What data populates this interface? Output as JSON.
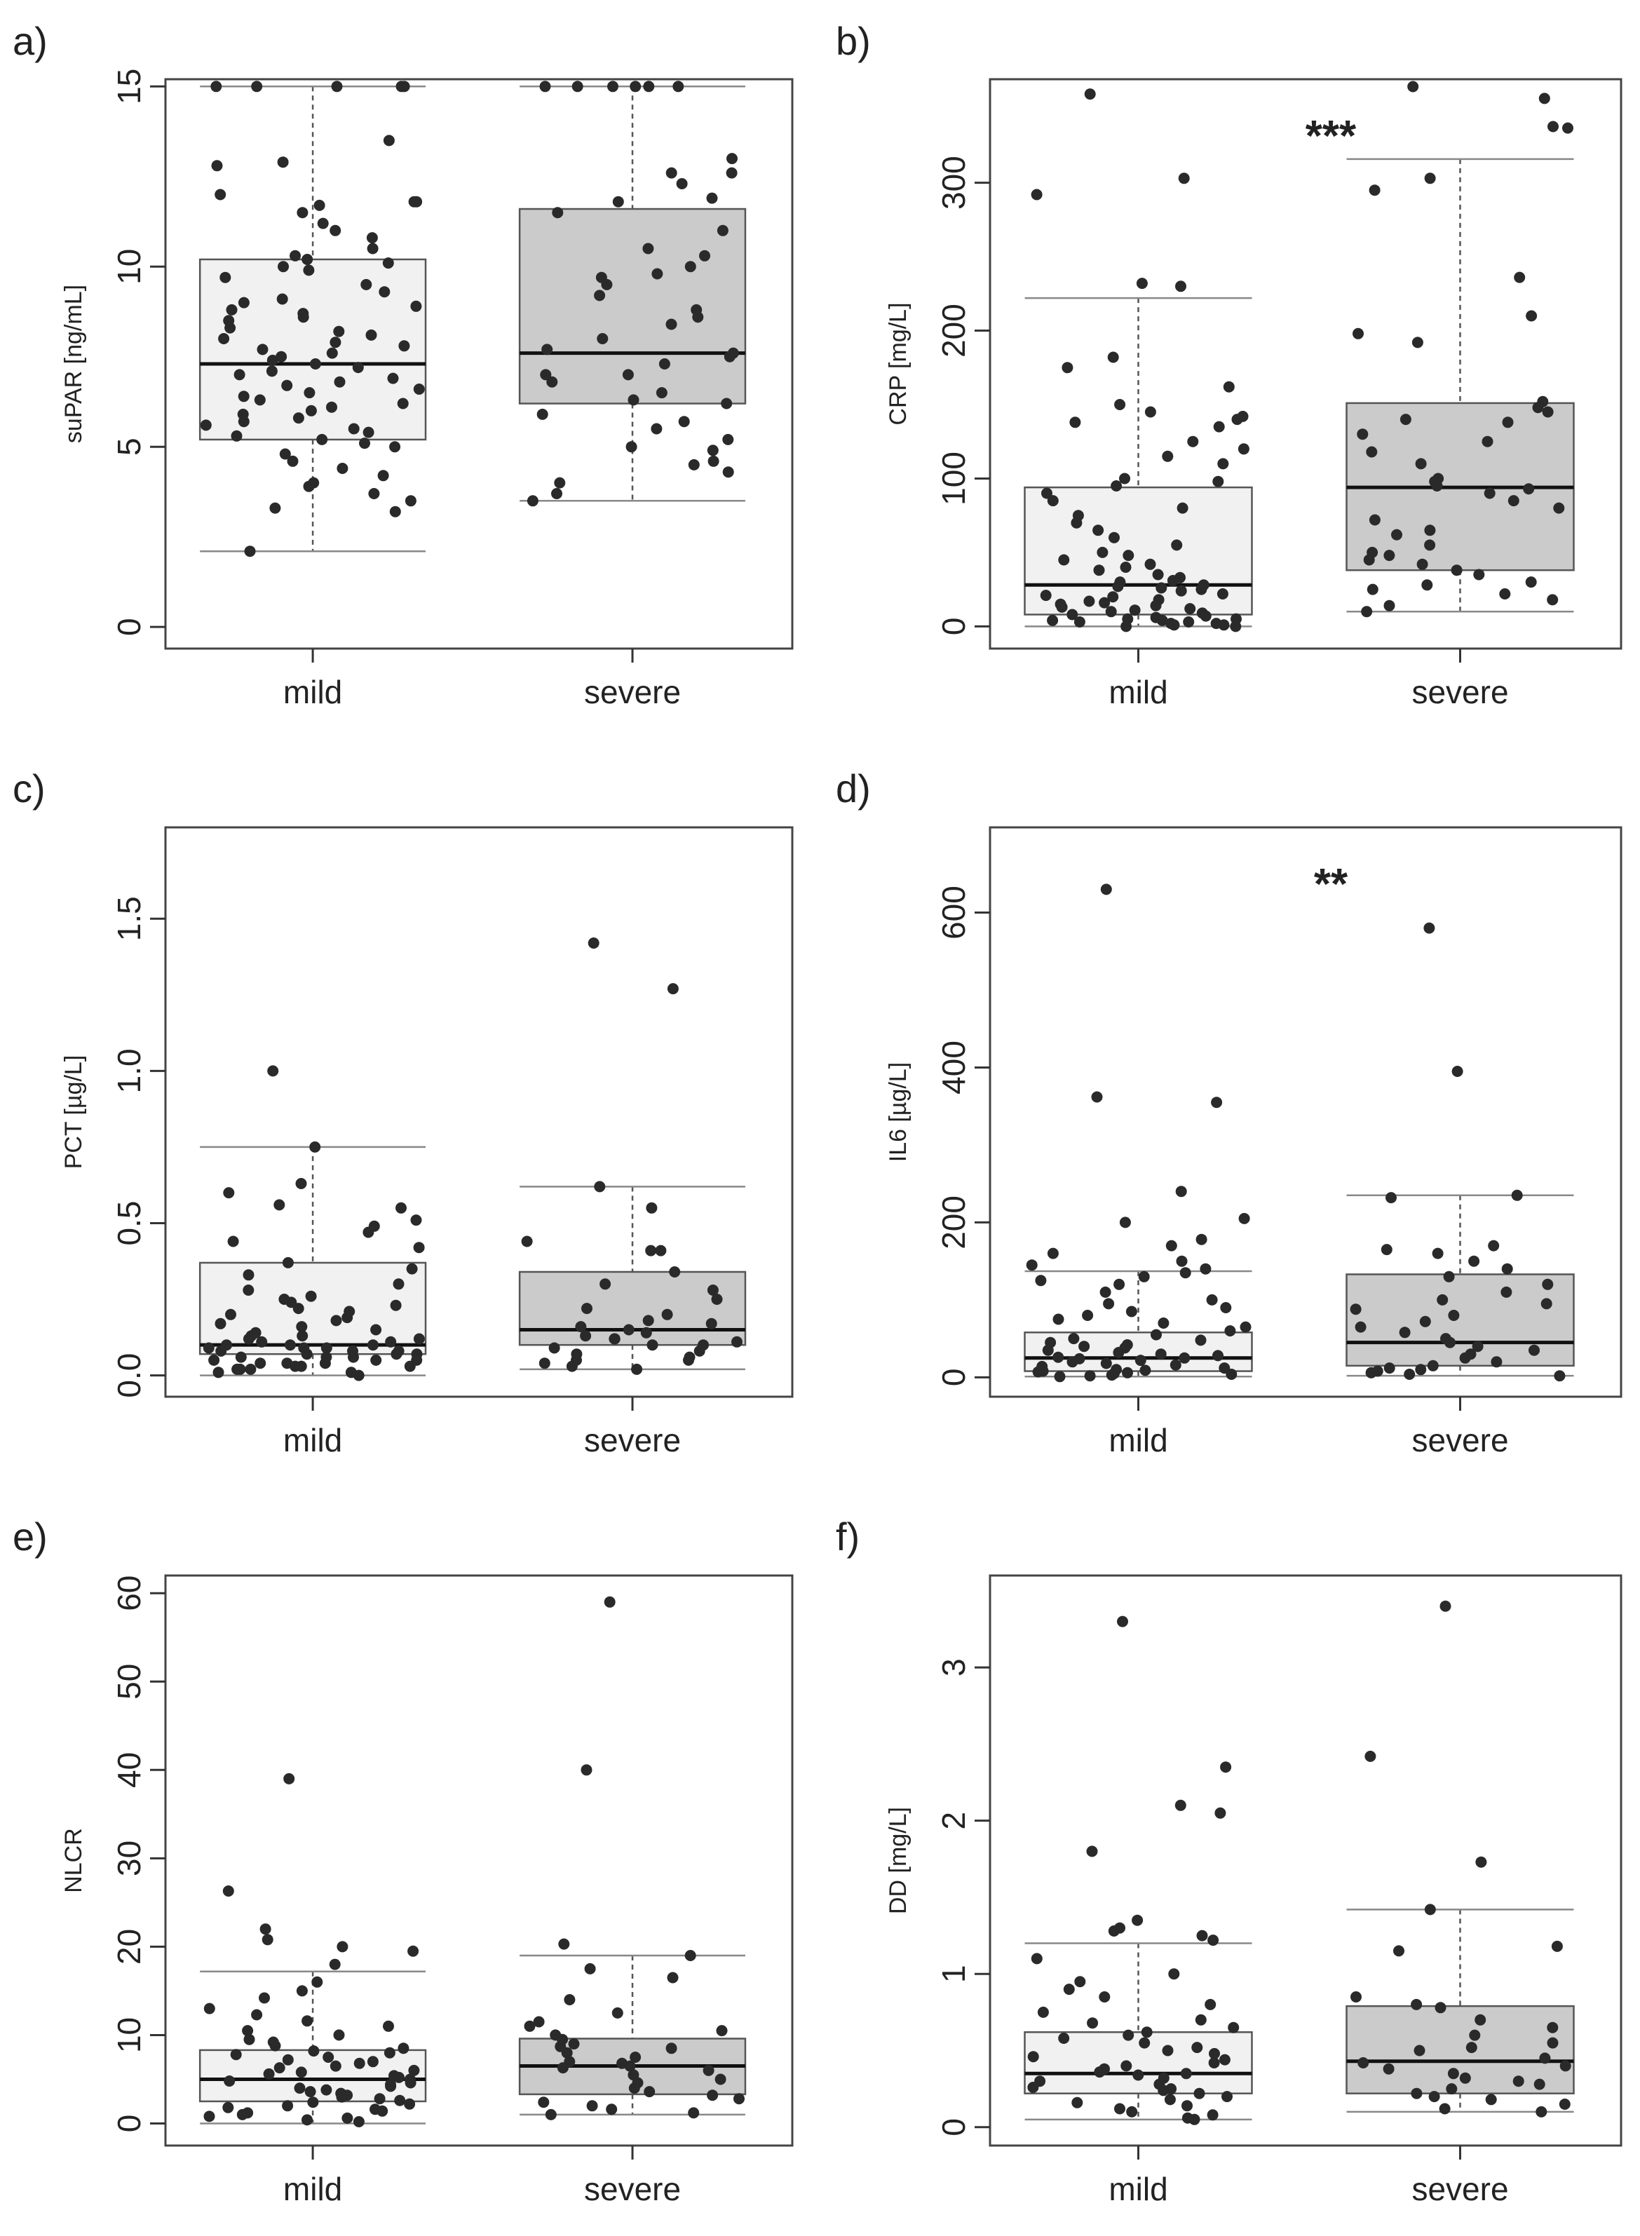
{
  "chart_data": [
    {
      "panel": "a)",
      "type": "box",
      "ylabel": "suPAR [ng/mL]",
      "ylim": [
        -0.6,
        15.2
      ],
      "ticks": [
        0,
        5,
        10,
        15
      ],
      "tick_labels": [
        "0",
        "5",
        "10",
        "15"
      ],
      "categories": [
        "mild",
        "severe"
      ],
      "significance": "",
      "groups": [
        {
          "name": "mild",
          "q1": 5.2,
          "median": 7.3,
          "q3": 10.2,
          "whisker_low": 2.1,
          "whisker_high": 15,
          "points": [
            15,
            15,
            15,
            15,
            15,
            13.5,
            12.9,
            12.8,
            12.0,
            11.8,
            11.8,
            11.7,
            11.5,
            11.2,
            11.0,
            10.8,
            10.5,
            10.3,
            10.2,
            10.1,
            10.0,
            9.9,
            9.7,
            9.5,
            9.3,
            9.1,
            9.0,
            8.9,
            8.8,
            8.7,
            8.6,
            8.5,
            8.3,
            8.2,
            8.1,
            8.0,
            7.9,
            7.8,
            7.7,
            7.6,
            7.5,
            7.4,
            7.3,
            7.2,
            7.1,
            7.0,
            6.9,
            6.8,
            6.7,
            6.6,
            6.5,
            6.4,
            6.3,
            6.2,
            6.1,
            6.0,
            5.9,
            5.8,
            5.7,
            5.6,
            5.5,
            5.4,
            5.3,
            5.2,
            5.1,
            5.0,
            4.8,
            4.6,
            4.4,
            4.2,
            4.0,
            3.9,
            3.7,
            3.5,
            3.3,
            3.2,
            2.1
          ]
        },
        {
          "name": "severe",
          "q1": 6.2,
          "median": 7.6,
          "q3": 11.6,
          "whisker_low": 3.5,
          "whisker_high": 15,
          "points": [
            15,
            15,
            15,
            15,
            15,
            15,
            13.0,
            12.6,
            12.6,
            12.3,
            11.9,
            11.8,
            11.5,
            11.0,
            10.5,
            10.3,
            10.0,
            9.8,
            9.7,
            9.5,
            9.2,
            8.8,
            8.6,
            8.4,
            8.0,
            7.7,
            7.6,
            7.5,
            7.3,
            7.0,
            7.0,
            6.8,
            6.5,
            6.3,
            6.2,
            5.9,
            5.7,
            5.5,
            5.2,
            5.0,
            4.9,
            4.6,
            4.5,
            4.3,
            4.0,
            3.7,
            3.5
          ]
        }
      ]
    },
    {
      "panel": "b)",
      "type": "box",
      "ylabel": "CRP [mg/L]",
      "ylim": [
        -15,
        370
      ],
      "ticks": [
        0,
        100,
        200,
        300
      ],
      "tick_labels": [
        "0",
        "100",
        "200",
        "300"
      ],
      "categories": [
        "mild",
        "severe"
      ],
      "significance": "***",
      "groups": [
        {
          "name": "mild",
          "q1": 8,
          "median": 28,
          "q3": 94,
          "whisker_low": 0,
          "whisker_high": 222,
          "points": [
            360,
            303,
            292,
            232,
            230,
            182,
            175,
            162,
            150,
            145,
            142,
            140,
            138,
            135,
            125,
            120,
            115,
            110,
            100,
            98,
            95,
            90,
            85,
            80,
            75,
            70,
            65,
            60,
            55,
            50,
            48,
            45,
            42,
            40,
            38,
            35,
            33,
            31,
            30,
            28,
            27,
            26,
            25,
            24,
            22,
            21,
            20,
            18,
            17,
            16,
            15,
            14,
            13,
            12,
            11,
            10,
            9,
            8,
            7,
            6,
            5,
            5,
            4,
            4,
            3,
            3,
            2,
            2,
            1,
            1,
            0,
            0
          ]
        },
        {
          "name": "severe",
          "q1": 38,
          "median": 94,
          "q3": 151,
          "whisker_low": 10,
          "whisker_high": 316,
          "points": [
            365,
            357,
            338,
            337,
            303,
            295,
            236,
            210,
            198,
            192,
            152,
            148,
            145,
            140,
            138,
            130,
            125,
            118,
            110,
            100,
            98,
            95,
            93,
            90,
            85,
            80,
            72,
            65,
            62,
            55,
            50,
            48,
            45,
            42,
            38,
            35,
            30,
            28,
            25,
            22,
            18,
            14,
            10
          ]
        }
      ]
    },
    {
      "panel": "c)",
      "type": "box",
      "ylabel": "PCT [µg/L]",
      "ylim": [
        -0.07,
        1.8
      ],
      "ticks": [
        0.0,
        0.5,
        1.0,
        1.5
      ],
      "tick_labels": [
        "0.0",
        "0.5",
        "1.0",
        "1.5"
      ],
      "categories": [
        "mild",
        "severe"
      ],
      "significance": "",
      "groups": [
        {
          "name": "mild",
          "q1": 0.07,
          "median": 0.1,
          "q3": 0.37,
          "whisker_low": 0.0,
          "whisker_high": 0.75,
          "points": [
            1.0,
            0.75,
            0.63,
            0.6,
            0.56,
            0.55,
            0.51,
            0.49,
            0.47,
            0.44,
            0.42,
            0.37,
            0.35,
            0.33,
            0.3,
            0.28,
            0.26,
            0.25,
            0.24,
            0.23,
            0.22,
            0.21,
            0.2,
            0.19,
            0.18,
            0.17,
            0.16,
            0.15,
            0.14,
            0.13,
            0.13,
            0.12,
            0.12,
            0.11,
            0.11,
            0.1,
            0.1,
            0.1,
            0.09,
            0.09,
            0.09,
            0.08,
            0.08,
            0.08,
            0.07,
            0.07,
            0.07,
            0.06,
            0.06,
            0.06,
            0.05,
            0.05,
            0.05,
            0.04,
            0.04,
            0.04,
            0.03,
            0.03,
            0.03,
            0.02,
            0.02,
            0.02,
            0.01,
            0.01,
            0.0
          ]
        },
        {
          "name": "severe",
          "q1": 0.1,
          "median": 0.15,
          "q3": 0.34,
          "whisker_low": 0.02,
          "whisker_high": 0.62,
          "points": [
            1.42,
            1.27,
            0.62,
            0.55,
            0.44,
            0.41,
            0.41,
            0.34,
            0.3,
            0.28,
            0.25,
            0.22,
            0.2,
            0.18,
            0.17,
            0.16,
            0.15,
            0.14,
            0.13,
            0.12,
            0.12,
            0.11,
            0.1,
            0.1,
            0.09,
            0.08,
            0.07,
            0.06,
            0.05,
            0.05,
            0.04,
            0.03,
            0.02
          ]
        }
      ]
    },
    {
      "panel": "d)",
      "type": "box",
      "ylabel": "IL6 [µg/L]",
      "ylim": [
        -25,
        710
      ],
      "ticks": [
        0,
        200,
        400,
        600
      ],
      "tick_labels": [
        "0",
        "200",
        "400",
        "600"
      ],
      "categories": [
        "mild",
        "severe"
      ],
      "significance": "**",
      "groups": [
        {
          "name": "mild",
          "q1": 8,
          "median": 25,
          "q3": 58,
          "whisker_low": 1,
          "whisker_high": 137,
          "points": [
            630,
            362,
            355,
            240,
            205,
            200,
            178,
            170,
            160,
            150,
            145,
            140,
            135,
            130,
            125,
            120,
            110,
            100,
            95,
            90,
            85,
            80,
            75,
            70,
            65,
            60,
            55,
            50,
            48,
            45,
            42,
            40,
            38,
            35,
            32,
            30,
            28,
            26,
            25,
            24,
            22,
            20,
            18,
            16,
            14,
            12,
            10,
            9,
            8,
            7,
            6,
            5,
            4,
            3,
            2,
            1
          ]
        },
        {
          "name": "severe",
          "q1": 15,
          "median": 45,
          "q3": 133,
          "whisker_low": 2,
          "whisker_high": 235,
          "points": [
            580,
            395,
            235,
            232,
            170,
            165,
            160,
            150,
            140,
            130,
            120,
            110,
            100,
            95,
            88,
            80,
            72,
            65,
            58,
            50,
            45,
            40,
            35,
            30,
            25,
            20,
            15,
            12,
            10,
            8,
            6,
            4,
            2
          ]
        }
      ]
    },
    {
      "panel": "e)",
      "type": "box",
      "ylabel": "NLCR",
      "ylim": [
        -2.5,
        62
      ],
      "ticks": [
        0,
        10,
        20,
        30,
        40,
        50,
        60
      ],
      "tick_labels": [
        "0",
        "10",
        "20",
        "30",
        "40",
        "50",
        "60"
      ],
      "categories": [
        "mild",
        "severe"
      ],
      "significance": "",
      "groups": [
        {
          "name": "mild",
          "q1": 2.5,
          "median": 5,
          "q3": 8.3,
          "whisker_low": 0,
          "whisker_high": 17.2,
          "points": [
            39,
            26.3,
            22,
            20.8,
            20,
            19.5,
            18,
            16,
            15,
            14.2,
            13,
            12.3,
            11.6,
            11,
            10.5,
            10,
            9.5,
            9.2,
            8.8,
            8.5,
            8.2,
            8.0,
            7.8,
            7.5,
            7.2,
            7.0,
            6.8,
            6.5,
            6.3,
            6.0,
            5.8,
            5.6,
            5.4,
            5.2,
            5.0,
            4.8,
            4.6,
            4.4,
            4.2,
            4.0,
            3.8,
            3.6,
            3.4,
            3.2,
            3.0,
            2.8,
            2.6,
            2.4,
            2.2,
            2.0,
            1.8,
            1.6,
            1.4,
            1.2,
            1.0,
            0.8,
            0.6,
            0.4,
            0.2
          ]
        },
        {
          "name": "severe",
          "q1": 3.3,
          "median": 6.5,
          "q3": 9.6,
          "whisker_low": 1,
          "whisker_high": 19,
          "points": [
            59,
            40,
            20.3,
            19,
            17.5,
            16.5,
            14,
            12.5,
            11.5,
            11,
            10.5,
            10,
            9.5,
            9,
            8.7,
            8.5,
            8,
            7.5,
            7,
            6.8,
            6.5,
            6.3,
            6,
            5.5,
            5,
            4.6,
            4,
            3.6,
            3.2,
            2.8,
            2.4,
            2,
            1.6,
            1.2,
            1
          ]
        }
      ]
    },
    {
      "panel": "f)",
      "type": "box",
      "ylabel": "DD [mg/L]",
      "ylim": [
        -0.12,
        3.6
      ],
      "ticks": [
        0,
        1,
        2,
        3
      ],
      "tick_labels": [
        "0",
        "1",
        "2",
        "3"
      ],
      "categories": [
        "mild",
        "severe"
      ],
      "significance": "",
      "groups": [
        {
          "name": "mild",
          "q1": 0.22,
          "median": 0.35,
          "q3": 0.62,
          "whisker_low": 0.05,
          "whisker_high": 1.2,
          "points": [
            3.3,
            2.35,
            2.1,
            2.05,
            1.8,
            1.35,
            1.3,
            1.28,
            1.25,
            1.22,
            1.1,
            1.0,
            0.95,
            0.9,
            0.85,
            0.8,
            0.75,
            0.7,
            0.68,
            0.65,
            0.62,
            0.6,
            0.58,
            0.55,
            0.52,
            0.5,
            0.48,
            0.46,
            0.44,
            0.42,
            0.4,
            0.38,
            0.36,
            0.35,
            0.34,
            0.32,
            0.3,
            0.28,
            0.26,
            0.25,
            0.24,
            0.22,
            0.2,
            0.18,
            0.16,
            0.14,
            0.12,
            0.1,
            0.08,
            0.06,
            0.05
          ]
        },
        {
          "name": "severe",
          "q1": 0.22,
          "median": 0.43,
          "q3": 0.79,
          "whisker_low": 0.1,
          "whisker_high": 1.42,
          "points": [
            3.4,
            2.42,
            1.73,
            1.42,
            1.18,
            1.15,
            0.85,
            0.8,
            0.78,
            0.7,
            0.65,
            0.6,
            0.55,
            0.52,
            0.5,
            0.45,
            0.42,
            0.4,
            0.38,
            0.35,
            0.32,
            0.3,
            0.28,
            0.25,
            0.22,
            0.2,
            0.18,
            0.15,
            0.12,
            0.1
          ]
        }
      ]
    }
  ]
}
